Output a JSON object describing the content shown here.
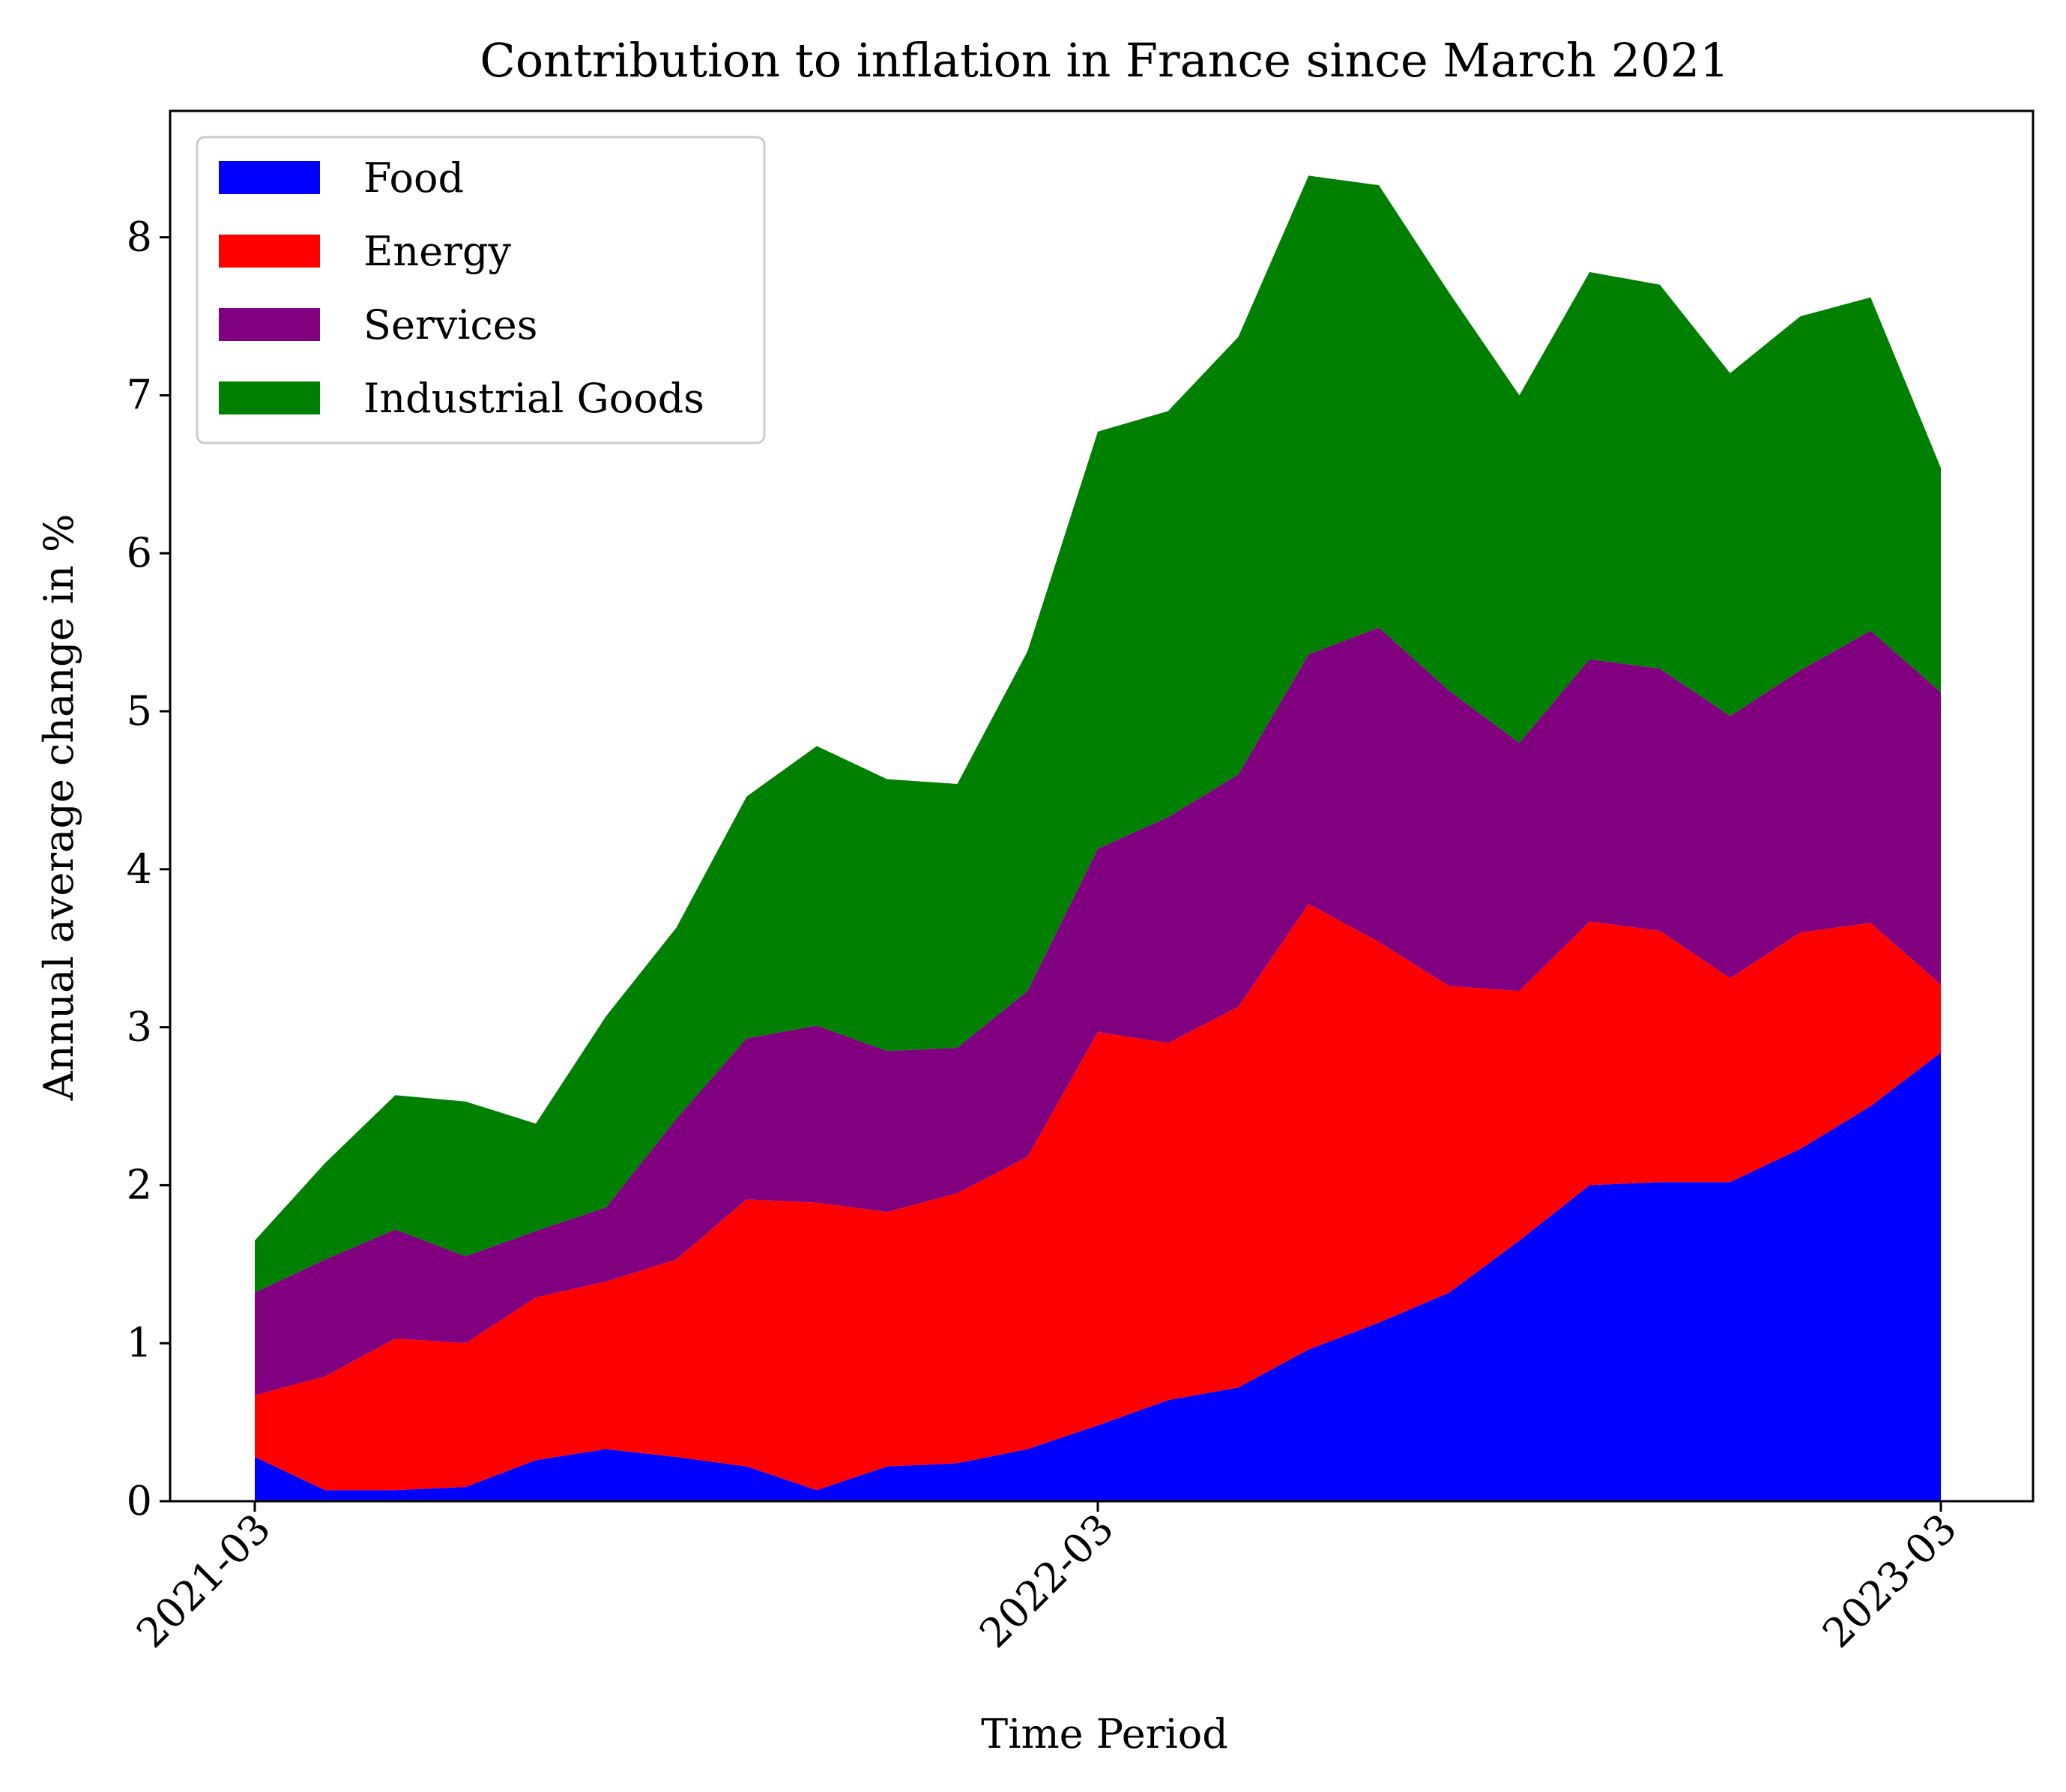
{
  "chart_data": {
    "type": "area",
    "stacked": true,
    "title": "Contribution to inflation in France since March 2021",
    "xlabel": "Time Period",
    "ylabel": "Annual average change in %",
    "x": [
      "2021-03",
      "2021-04",
      "2021-05",
      "2021-06",
      "2021-07",
      "2021-08",
      "2021-09",
      "2021-10",
      "2021-11",
      "2021-12",
      "2022-01",
      "2022-02",
      "2022-03",
      "2022-04",
      "2022-05",
      "2022-06",
      "2022-07",
      "2022-08",
      "2022-09",
      "2022-10",
      "2022-11",
      "2022-12",
      "2023-01",
      "2023-02",
      "2023-03"
    ],
    "xticks": [
      "2021-03",
      "2022-03",
      "2023-03"
    ],
    "ylim": [
      0,
      8.8
    ],
    "yticks": [
      0,
      1,
      2,
      3,
      4,
      5,
      6,
      7,
      8
    ],
    "grid": false,
    "legend_position": "top-left",
    "series": [
      {
        "name": "Food",
        "color": "#0000ff",
        "values": [
          0.28,
          0.07,
          0.07,
          0.09,
          0.26,
          0.33,
          0.28,
          0.22,
          0.07,
          0.22,
          0.24,
          0.33,
          0.48,
          0.64,
          0.72,
          0.96,
          1.13,
          1.32,
          1.65,
          2.0,
          2.02,
          2.02,
          2.23,
          2.5,
          2.84
        ]
      },
      {
        "name": "Energy",
        "color": "#ff0000",
        "values": [
          0.39,
          0.72,
          0.96,
          0.91,
          1.03,
          1.06,
          1.25,
          1.69,
          1.82,
          1.61,
          1.71,
          1.85,
          2.49,
          2.26,
          2.41,
          2.82,
          2.41,
          1.94,
          1.58,
          1.67,
          1.59,
          1.29,
          1.37,
          1.16,
          0.43
        ]
      },
      {
        "name": "Services",
        "color": "#800080",
        "values": [
          0.65,
          0.74,
          0.69,
          0.55,
          0.42,
          0.47,
          0.89,
          1.02,
          1.12,
          1.02,
          0.92,
          1.05,
          1.16,
          1.43,
          1.47,
          1.58,
          1.99,
          1.87,
          1.57,
          1.66,
          1.66,
          1.66,
          1.66,
          1.85,
          1.85
        ]
      },
      {
        "name": "Industrial Goods",
        "color": "#008000",
        "values": [
          0.33,
          0.61,
          0.85,
          0.98,
          0.68,
          1.21,
          1.21,
          1.53,
          1.77,
          1.72,
          1.67,
          2.15,
          2.64,
          2.57,
          2.77,
          3.03,
          2.8,
          2.52,
          2.2,
          2.45,
          2.43,
          2.17,
          2.24,
          2.11,
          1.42
        ]
      }
    ]
  }
}
